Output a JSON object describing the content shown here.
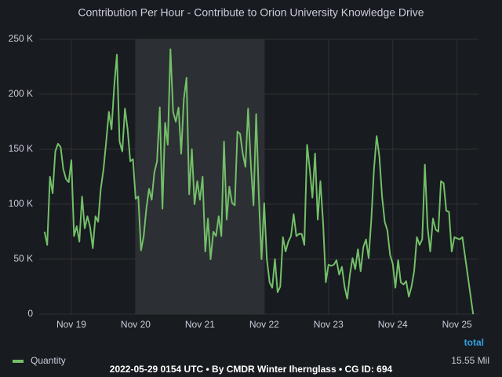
{
  "chart_data": {
    "type": "line",
    "title": "Contribution Per Hour - Contribute to Orion University Knowledge Drive",
    "x": [
      -10,
      -9,
      -8,
      -7,
      -6,
      -5,
      -4,
      -3,
      -2,
      -1,
      0,
      1,
      2,
      3,
      4,
      5,
      6,
      7,
      8,
      9,
      10,
      11,
      12,
      13,
      14,
      15,
      16,
      17,
      18,
      19,
      20,
      21,
      22,
      23,
      24,
      25,
      26,
      27,
      28,
      29,
      30,
      31,
      32,
      33,
      34,
      35,
      36,
      37,
      38,
      39,
      40,
      41,
      42,
      43,
      44,
      45,
      46,
      47,
      48,
      49,
      50,
      51,
      52,
      53,
      54,
      55,
      56,
      57,
      58,
      59,
      60,
      61,
      62,
      63,
      64,
      65,
      66,
      67,
      68,
      69,
      70,
      71,
      72,
      73,
      74,
      75,
      76,
      77,
      78,
      79,
      80,
      81,
      82,
      83,
      84,
      85,
      86,
      87,
      88,
      89,
      90,
      91,
      92,
      93,
      94,
      95,
      96,
      97,
      98,
      99,
      100,
      101,
      102,
      103,
      104,
      105,
      106,
      107,
      108,
      109,
      110,
      111,
      112,
      113,
      114,
      115,
      116,
      117,
      118,
      119,
      120,
      121,
      122,
      123,
      124,
      125,
      126,
      127,
      128,
      129,
      130,
      131,
      132,
      133,
      134,
      135,
      136,
      137,
      138,
      139,
      140,
      141,
      142,
      143,
      144,
      145,
      146,
      150
    ],
    "series": [
      {
        "name": "Quantity",
        "color": "#73bf69",
        "values": [
          75000,
          63000,
          125000,
          110000,
          148000,
          155000,
          152000,
          132000,
          123000,
          120000,
          140000,
          71000,
          80000,
          66000,
          107000,
          78000,
          89000,
          79000,
          60000,
          89000,
          84000,
          114000,
          132000,
          157000,
          184000,
          168000,
          207000,
          236000,
          157000,
          148000,
          187000,
          168000,
          139000,
          141000,
          105000,
          107000,
          58000,
          71000,
          96000,
          114000,
          104000,
          129000,
          139000,
          188000,
          96000,
          174000,
          154000,
          241000,
          184000,
          175000,
          188000,
          146000,
          196000,
          215000,
          109000,
          150000,
          100000,
          121000,
          104000,
          125000,
          57000,
          87000,
          50000,
          75000,
          71000,
          89000,
          71000,
          157000,
          86000,
          116000,
          101000,
          99000,
          166000,
          164000,
          146000,
          134000,
          187000,
          136000,
          99000,
          182000,
          107000,
          50000,
          101000,
          50000,
          29000,
          24000,
          50000,
          20000,
          25000,
          70000,
          57000,
          66000,
          71000,
          91000,
          71000,
          73000,
          73000,
          63000,
          154000,
          132000,
          106000,
          146000,
          86000,
          121000,
          82000,
          29000,
          45000,
          44000,
          45000,
          49000,
          36000,
          43000,
          25000,
          14000,
          36000,
          51000,
          41000,
          59000,
          39000,
          61000,
          68000,
          51000,
          86000,
          132000,
          162000,
          143000,
          107000,
          84000,
          76000,
          54000,
          46000,
          24000,
          49000,
          29000,
          27000,
          30000,
          16000,
          25000,
          39000,
          70000,
          63000,
          68000,
          136000,
          79000,
          57000,
          87000,
          77000,
          75000,
          121000,
          119000,
          94000,
          93000,
          57000,
          70000,
          69000,
          68000,
          70000,
          0
        ]
      }
    ],
    "xlim": [
      -12,
      152
    ],
    "xticks": [
      {
        "value": 0,
        "label": "Nov 19"
      },
      {
        "value": 24,
        "label": "Nov 20"
      },
      {
        "value": 48,
        "label": "Nov 21"
      },
      {
        "value": 72,
        "label": "Nov 22"
      },
      {
        "value": 96,
        "label": "Nov 23"
      },
      {
        "value": 120,
        "label": "Nov 24"
      },
      {
        "value": 144,
        "label": "Nov 25"
      }
    ],
    "ylim": [
      0,
      250000
    ],
    "yticks": [
      0,
      {
        "value": 50000,
        "label": "50 K"
      },
      {
        "value": 100000,
        "label": "100 K"
      },
      {
        "value": 150000,
        "label": "150 K"
      },
      {
        "value": 200000,
        "label": "200 K"
      },
      {
        "value": 250000,
        "label": "250 K"
      }
    ],
    "highlight": [
      24,
      72
    ],
    "grid": true,
    "legend_header": "total",
    "legend_totals": [
      "15.55 Mil"
    ],
    "footer": "2022-05-29 0154 UTC • By CMDR Winter Ihernglass • CG ID: 694"
  }
}
